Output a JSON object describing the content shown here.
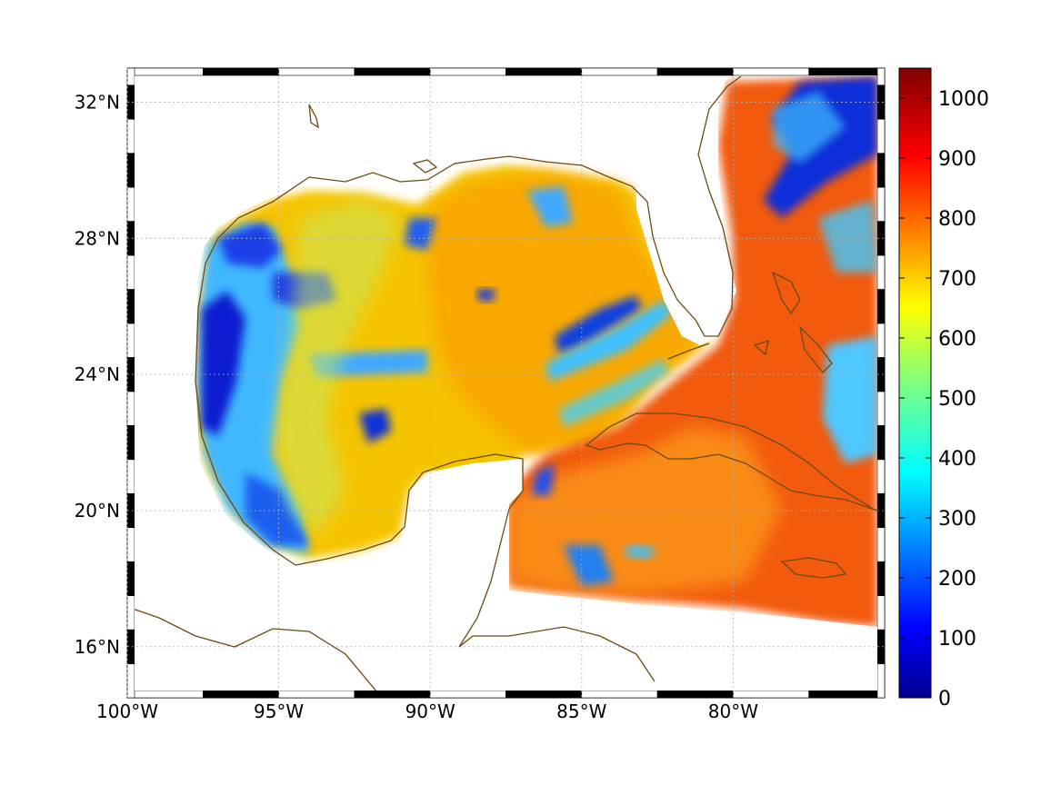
{
  "map": {
    "lon_ticks": [
      "100°W",
      "95°W",
      "90°W",
      "85°W",
      "80°W"
    ],
    "lat_ticks": [
      "32°N",
      "28°N",
      "24°N",
      "20°N",
      "16°N"
    ],
    "lon_range": [
      -100,
      -75
    ],
    "lat_range": [
      14.5,
      33
    ],
    "grid": true,
    "coastline_color": "#6b4a10",
    "frame_style": "black-white checkered border"
  },
  "colorbar": {
    "ticks": [
      "1000",
      "900",
      "800",
      "700",
      "600",
      "500",
      "400",
      "300",
      "200",
      "100",
      "0"
    ],
    "range": [
      0,
      1050
    ],
    "colormap": "jet"
  }
}
